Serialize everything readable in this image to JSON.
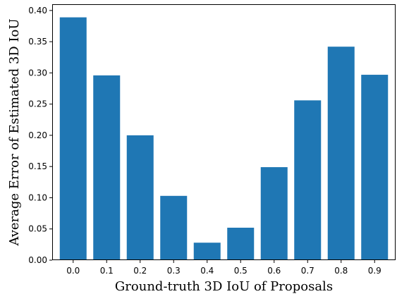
{
  "chart_data": {
    "type": "bar",
    "title": "",
    "xlabel": "Ground-truth 3D IoU of Proposals",
    "ylabel": "Average Error of Estimated 3D IoU",
    "categories": [
      "0.0",
      "0.1",
      "0.2",
      "0.3",
      "0.4",
      "0.5",
      "0.6",
      "0.7",
      "0.8",
      "0.9"
    ],
    "values": [
      0.389,
      0.296,
      0.2,
      0.103,
      0.028,
      0.052,
      0.149,
      0.256,
      0.342,
      0.297
    ],
    "ylim": [
      0,
      0.41
    ],
    "yticks": [
      0.0,
      0.05,
      0.1,
      0.15,
      0.2,
      0.25,
      0.3,
      0.35,
      0.4
    ],
    "ytick_labels": [
      "0.00",
      "0.05",
      "0.10",
      "0.15",
      "0.20",
      "0.25",
      "0.30",
      "0.35",
      "0.40"
    ],
    "grid": false,
    "legend": "none",
    "bar_color": "#1f77b4"
  }
}
